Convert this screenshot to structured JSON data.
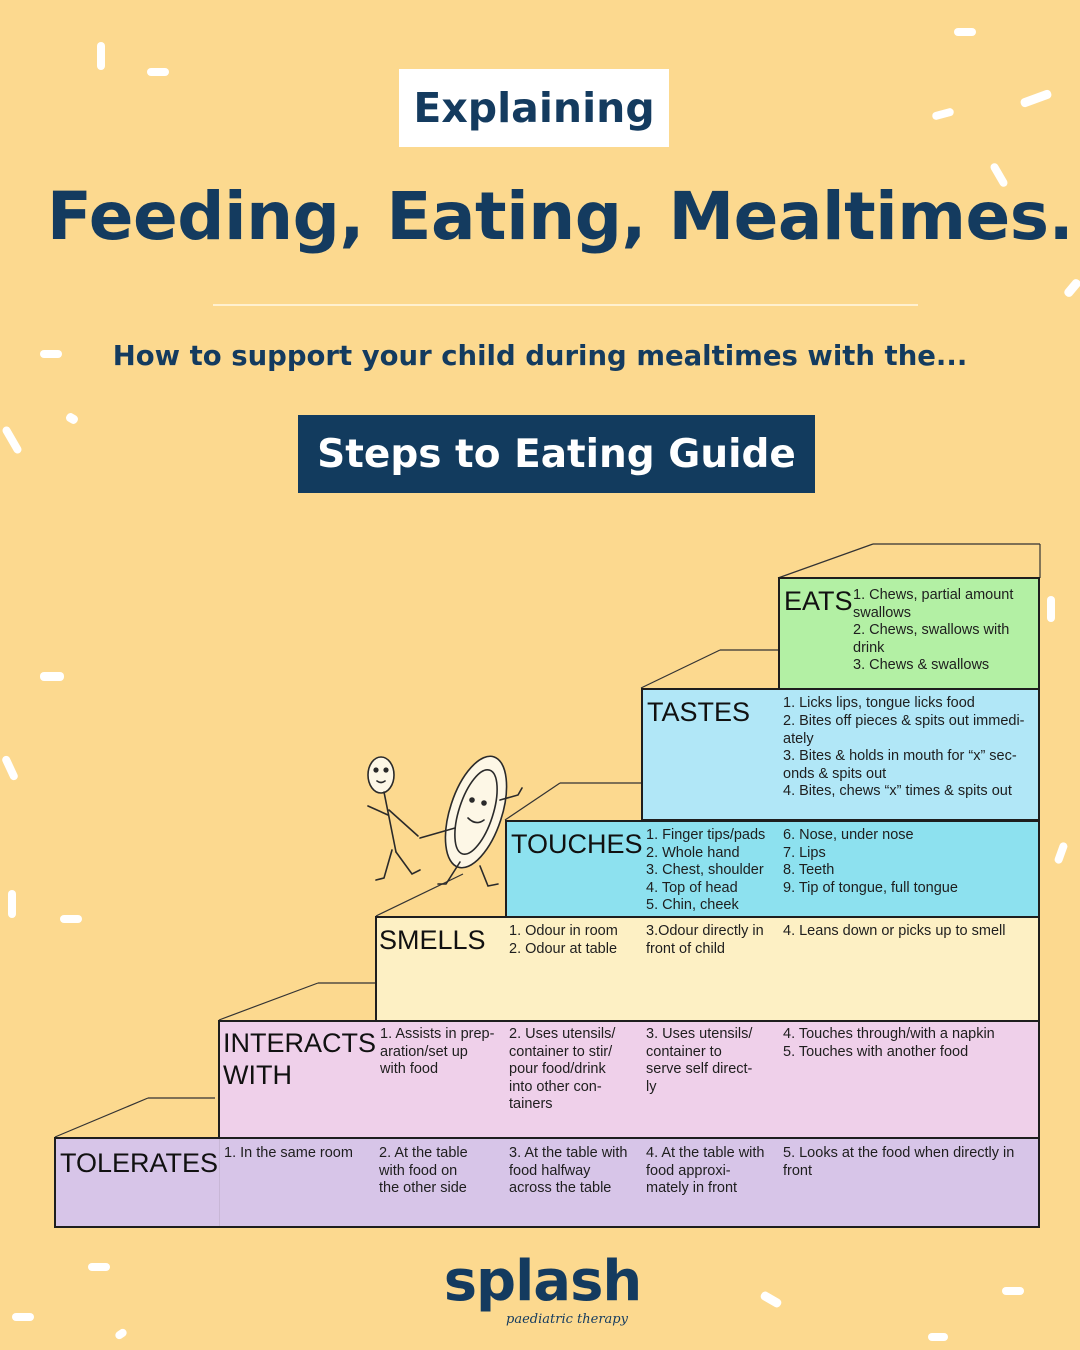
{
  "header": {
    "tag": "Explaining",
    "title": "Feeding, Eating, Mealtimes.",
    "subtitle": "How to support your child during mealtimes with the...",
    "banner": "Steps to Eating Guide"
  },
  "steps": {
    "eats": {
      "label": "EATS",
      "items": [
        "1. Chews, partial amount\n    swallows",
        "2. Chews, swallows with\n    drink",
        "3. Chews & swallows"
      ]
    },
    "tastes": {
      "label": "TASTES",
      "items": [
        "1. Licks lips, tongue licks food",
        "2. Bites off pieces & spits out immedi-\n    ately",
        "3. Bites & holds in mouth for “x” sec-\n    onds & spits out",
        "4. Bites, chews “x” times & spits out"
      ]
    },
    "touches": {
      "label": "TOUCHES",
      "items": [
        "1. Finger tips/pads",
        "2. Whole hand",
        "3. Chest, shoulder",
        "4. Top of head",
        "5. Chin, cheek",
        "6.  Nose, under nose",
        "7.  Lips",
        "8.  Teeth",
        "9.  Tip of tongue, full tongue"
      ]
    },
    "smells": {
      "label": "SMELLS",
      "items": [
        "1. Odour in room\n2. Odour at table",
        "3.Odour directly in\n   front of child",
        "4.       Leans down or picks up to smell"
      ]
    },
    "interacts": {
      "label": "INTERACTS\nWITH",
      "items": [
        "1.  Assists in prep-\n     aration/set up\n     with food",
        "2.  Uses utensils/\n     container to stir/\n     pour food/drink\n     into other con-\n     tainers",
        "3.  Uses utensils/\n     container to\n     serve self direct-\n     ly",
        "4.  Touches through/with a napkin\n5.  Touches with another food"
      ]
    },
    "tolerates": {
      "label": "TOLERATES",
      "items": [
        "1. In the same room",
        "2. At the table\n    with food on\n    the other side",
        "3. At the table with\n    food halfway\n    across the table",
        "4. At the table with\n    food approxi-\n    mately in front",
        "5. Looks at the food when directly in\n    front"
      ]
    }
  },
  "logo": {
    "word": "splash",
    "tagline": "paediatric therapy"
  },
  "colors": {
    "background": "#fcd98f",
    "navy": "#143b5f",
    "eats": "#b3f0a4",
    "tastes": "#b1e7f7",
    "touches": "#8de1ef",
    "smells": "#fdf0c4",
    "interacts": "#efd0ea",
    "tolerates": "#d7c5e8"
  }
}
